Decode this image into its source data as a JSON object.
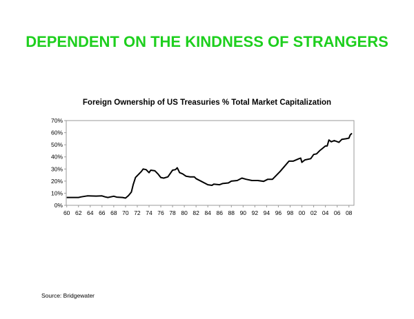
{
  "slide_title": "DEPENDENT ON THE KINDNESS OF STRANGERS",
  "source": "Source:  Bridgewater",
  "colors": {
    "title": "#1ecf1e",
    "line": "#000000"
  },
  "chart_data": {
    "type": "line",
    "title": "Foreign Ownership of US Treasuries % Total Market Capitalization",
    "xlabel": "",
    "ylabel": "",
    "xlim": [
      1960,
      2008.8
    ],
    "ylim": [
      0,
      70
    ],
    "yticks": [
      "0%",
      "10%",
      "20%",
      "30%",
      "40%",
      "50%",
      "60%",
      "70%"
    ],
    "xticks": [
      "60",
      "62",
      "64",
      "66",
      "68",
      "70",
      "72",
      "74",
      "76",
      "78",
      "80",
      "82",
      "84",
      "86",
      "88",
      "90",
      "92",
      "94",
      "96",
      "98",
      "00",
      "02",
      "04",
      "06",
      "08"
    ],
    "grid": false,
    "series": [
      {
        "x": [
          1960,
          1962,
          1962.5,
          1963.5,
          1965,
          1966,
          1966.5,
          1967,
          1968,
          1968.5,
          1969.5,
          1970,
          1970.5,
          1971,
          1971.3,
          1971.7,
          1972.3,
          1972.7,
          1973,
          1973.5,
          1974,
          1974.3,
          1975,
          1975.5,
          1976,
          1976.5,
          1977.2,
          1978,
          1978.5,
          1978.8,
          1979.2,
          1979.7,
          1980.3,
          1981,
          1981.7,
          1982,
          1983,
          1984,
          1984.7,
          1985,
          1986,
          1986.5,
          1987.5,
          1988,
          1989,
          1989.8,
          1990.5,
          1991.5,
          1992.5,
          1993.5,
          1994.2,
          1995,
          1995.5,
          1996.3,
          1997,
          1997.8,
          1998.5,
          1999.5,
          1999.8,
          2000,
          2000.5,
          2001.5,
          2002,
          2002.5,
          2003,
          2003.5,
          2004,
          2004.3,
          2004.6,
          2005,
          2005.5,
          2006.3,
          2006.8,
          2007.5,
          2008,
          2008.2,
          2008.5
        ],
        "y": [
          6.5,
          6.5,
          7,
          7.8,
          7.6,
          7.8,
          7,
          6.5,
          7.5,
          6.8,
          6.5,
          6,
          8,
          11,
          17,
          23,
          26,
          28,
          30,
          29.5,
          27,
          29,
          28.5,
          26,
          23,
          22.5,
          23.5,
          29,
          29.5,
          31,
          27,
          26,
          24,
          23.5,
          23.5,
          22,
          19.5,
          17,
          16.5,
          17.5,
          17,
          18,
          18.5,
          20,
          20.5,
          22.5,
          21.5,
          20.5,
          20.5,
          19.8,
          21.5,
          21.5,
          24,
          28,
          32,
          36.5,
          36.5,
          38.5,
          39,
          35.5,
          37.5,
          38.5,
          42,
          42.5,
          45,
          47,
          49,
          49,
          54,
          52.5,
          53.5,
          52,
          54.5,
          55,
          55.5,
          58,
          59.5
        ]
      }
    ]
  }
}
